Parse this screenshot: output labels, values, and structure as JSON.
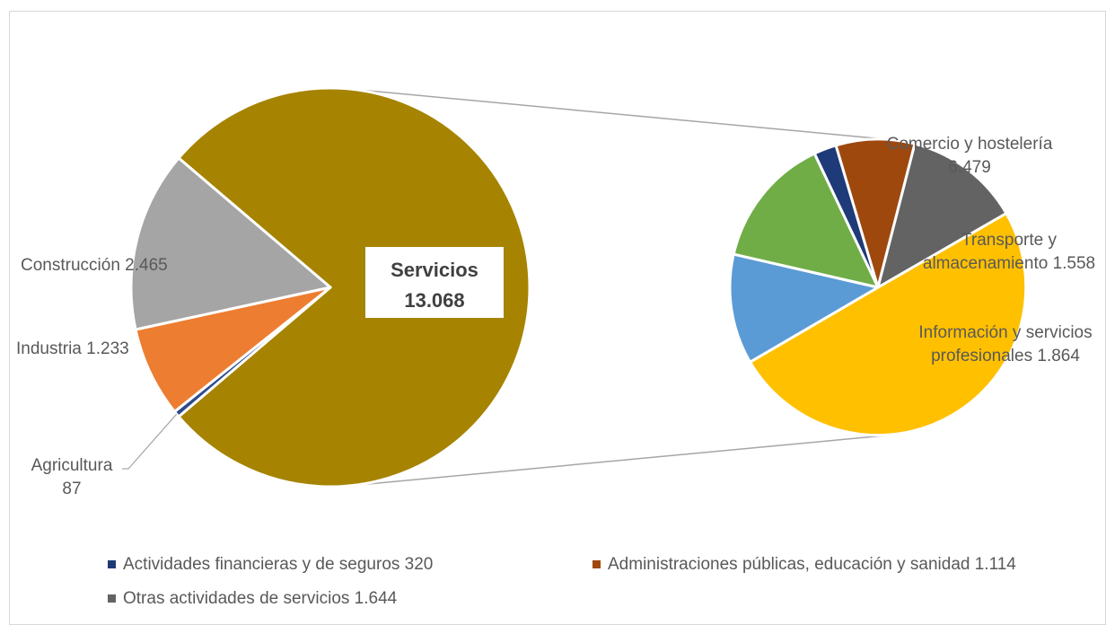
{
  "chart_data": {
    "type": "pie",
    "subtype": "pie-of-pie",
    "primary": {
      "slices": [
        {
          "name": "Servicios",
          "value": 13068,
          "color": "#A68300",
          "label_name": "Servicios",
          "label_value": "13.068"
        },
        {
          "name": "Agricultura",
          "value": 87,
          "color": "#2E4A8B",
          "label_name": "Agricultura",
          "label_value": "87"
        },
        {
          "name": "Industria",
          "value": 1233,
          "color": "#ED7D31",
          "label_name": "Industria",
          "label_value": "1.233"
        },
        {
          "name": "Construcción",
          "value": 2465,
          "color": "#A5A5A5",
          "label_name": "Construcción",
          "label_value": "2.465"
        }
      ]
    },
    "secondary": {
      "parent": "Servicios",
      "slices": [
        {
          "name": "Comercio y hostelería",
          "value": 6479,
          "color": "#FFC000",
          "label_line1": "Comercio y hostelería",
          "label_line2": "6.479"
        },
        {
          "name": "Transporte y almacenamiento",
          "value": 1558,
          "color": "#5B9BD5",
          "label_line1": "Transporte y",
          "label_line2": "almacenamiento 1.558"
        },
        {
          "name": "Información y servicios profesionales",
          "value": 1864,
          "color": "#70AD47",
          "label_line1": "Información y servicios",
          "label_line2": "profesionales 1.864"
        },
        {
          "name": "Actividades financieras y de seguros",
          "value": 320,
          "color": "#1F3A78"
        },
        {
          "name": "Administraciones públicas, educación y sanidad",
          "value": 1114,
          "color": "#9E480E"
        },
        {
          "name": "Otras actividades de servicios",
          "value": 1644,
          "color": "#636363"
        }
      ]
    },
    "legend": [
      {
        "text": "Actividades financieras y de seguros 320",
        "color": "#1F3A78"
      },
      {
        "text": "Administraciones públicas, educación y sanidad 1.114",
        "color": "#9E480E"
      },
      {
        "text": "Otras actividades de servicios 1.644",
        "color": "#636363"
      }
    ],
    "legend_position": "bottom-left"
  }
}
